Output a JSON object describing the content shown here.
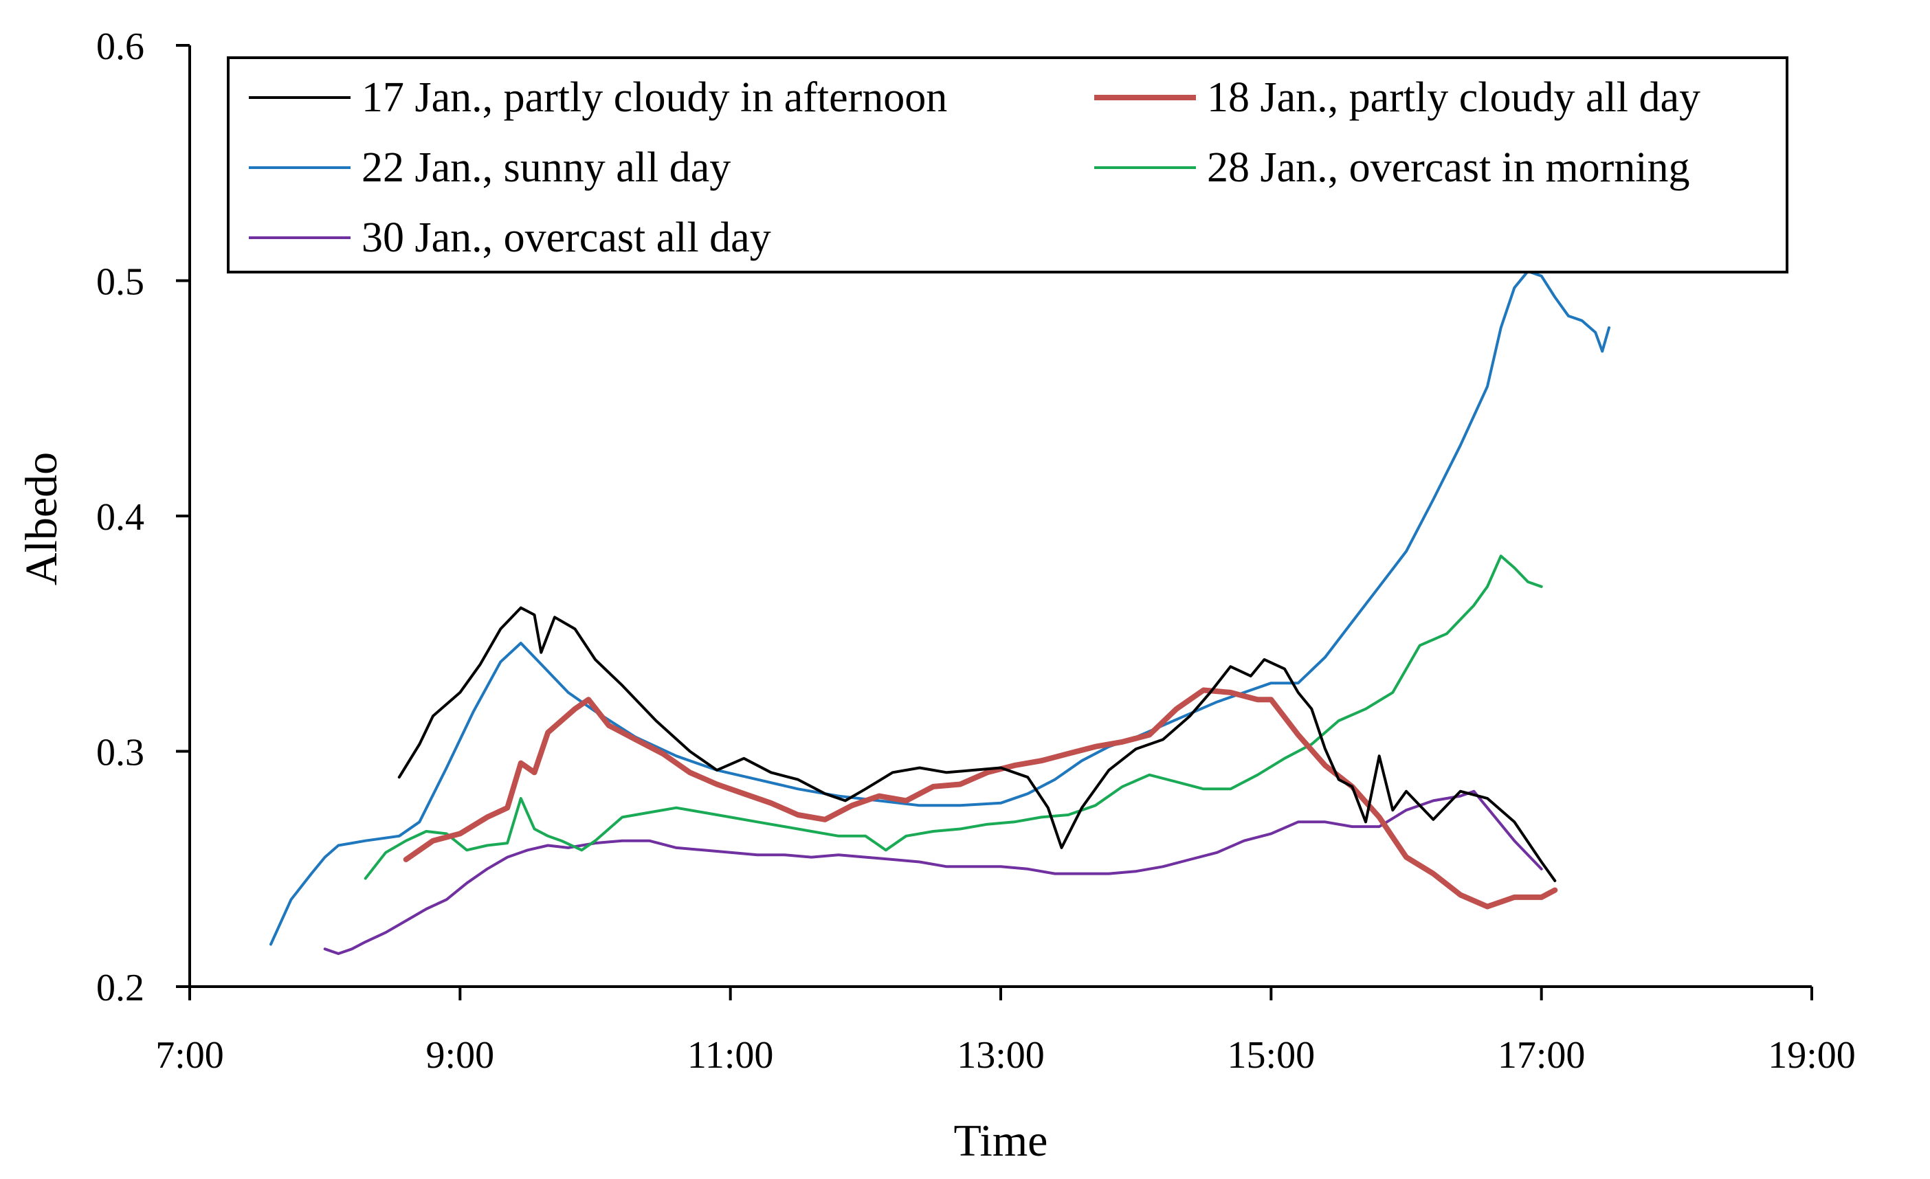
{
  "chart_data": {
    "type": "line",
    "title": "",
    "xlabel": "Time",
    "ylabel": "Albedo",
    "xlim": [
      7,
      19
    ],
    "ylim": [
      0.2,
      0.6
    ],
    "x_ticks": [
      7,
      9,
      11,
      13,
      15,
      17,
      19
    ],
    "x_tick_labels": [
      "7:00",
      "9:00",
      "11:00",
      "13:00",
      "15:00",
      "17:00",
      "19:00"
    ],
    "y_ticks": [
      0.2,
      0.3,
      0.4,
      0.5,
      0.6
    ],
    "y_tick_labels": [
      "0.2",
      "0.3",
      "0.4",
      "0.5",
      "0.6"
    ],
    "grid": false,
    "legend_position": "top",
    "series": [
      {
        "name": "17 Jan., partly cloudy in afternoon",
        "color": "#000000",
        "x": [
          8.55,
          8.7,
          8.8,
          9.0,
          9.15,
          9.3,
          9.45,
          9.55,
          9.6,
          9.7,
          9.85,
          10.0,
          10.2,
          10.45,
          10.7,
          10.9,
          11.1,
          11.3,
          11.5,
          11.7,
          11.85,
          12.0,
          12.2,
          12.4,
          12.6,
          12.8,
          13.0,
          13.2,
          13.35,
          13.45,
          13.6,
          13.8,
          14.0,
          14.2,
          14.4,
          14.55,
          14.7,
          14.85,
          14.95,
          15.1,
          15.2,
          15.3,
          15.4,
          15.5,
          15.6,
          15.7,
          15.8,
          15.9,
          16.0,
          16.2,
          16.4,
          16.6,
          16.8,
          17.0,
          17.1
        ],
        "y": [
          0.289,
          0.303,
          0.315,
          0.325,
          0.337,
          0.352,
          0.361,
          0.358,
          0.342,
          0.357,
          0.352,
          0.339,
          0.328,
          0.313,
          0.3,
          0.292,
          0.297,
          0.291,
          0.288,
          0.282,
          0.279,
          0.284,
          0.291,
          0.293,
          0.291,
          0.292,
          0.293,
          0.289,
          0.276,
          0.259,
          0.276,
          0.292,
          0.301,
          0.305,
          0.315,
          0.325,
          0.336,
          0.332,
          0.339,
          0.335,
          0.325,
          0.318,
          0.301,
          0.288,
          0.285,
          0.27,
          0.298,
          0.275,
          0.283,
          0.271,
          0.283,
          0.28,
          0.27,
          0.253,
          0.245
        ]
      },
      {
        "name": "18 Jan., partly cloudy all day",
        "color": "#c0504d",
        "x": [
          8.6,
          8.8,
          9.0,
          9.2,
          9.35,
          9.45,
          9.55,
          9.65,
          9.75,
          9.85,
          9.95,
          10.1,
          10.3,
          10.5,
          10.7,
          10.9,
          11.1,
          11.3,
          11.5,
          11.7,
          11.9,
          12.1,
          12.3,
          12.5,
          12.7,
          12.9,
          13.1,
          13.3,
          13.5,
          13.7,
          13.9,
          14.1,
          14.3,
          14.5,
          14.7,
          14.9,
          15.0,
          15.2,
          15.4,
          15.6,
          15.8,
          16.0,
          16.2,
          16.4,
          16.6,
          16.8,
          17.0,
          17.1
        ],
        "y": [
          0.254,
          0.262,
          0.265,
          0.272,
          0.276,
          0.295,
          0.291,
          0.308,
          0.313,
          0.318,
          0.322,
          0.311,
          0.305,
          0.299,
          0.291,
          0.286,
          0.282,
          0.278,
          0.273,
          0.271,
          0.277,
          0.281,
          0.279,
          0.285,
          0.286,
          0.291,
          0.294,
          0.296,
          0.299,
          0.302,
          0.304,
          0.307,
          0.318,
          0.326,
          0.325,
          0.322,
          0.322,
          0.307,
          0.294,
          0.285,
          0.272,
          0.255,
          0.248,
          0.239,
          0.234,
          0.238,
          0.238,
          0.241
        ]
      },
      {
        "name": "22 Jan., sunny  all day",
        "color": "#1f77bd",
        "x": [
          7.6,
          7.75,
          7.9,
          8.0,
          8.1,
          8.3,
          8.55,
          8.7,
          8.9,
          9.1,
          9.3,
          9.45,
          9.6,
          9.8,
          10.0,
          10.3,
          10.6,
          10.9,
          11.2,
          11.5,
          11.8,
          12.1,
          12.4,
          12.7,
          13.0,
          13.2,
          13.4,
          13.6,
          13.8,
          14.0,
          14.2,
          14.4,
          14.6,
          14.8,
          15.0,
          15.2,
          15.4,
          15.6,
          15.8,
          16.0,
          16.2,
          16.4,
          16.6,
          16.7,
          16.8,
          16.9,
          17.0,
          17.1,
          17.2,
          17.3,
          17.4,
          17.45,
          17.5
        ],
        "y": [
          0.218,
          0.237,
          0.248,
          0.255,
          0.26,
          0.262,
          0.264,
          0.27,
          0.293,
          0.317,
          0.338,
          0.346,
          0.337,
          0.325,
          0.317,
          0.306,
          0.298,
          0.292,
          0.288,
          0.284,
          0.281,
          0.279,
          0.277,
          0.277,
          0.278,
          0.282,
          0.288,
          0.296,
          0.302,
          0.306,
          0.311,
          0.316,
          0.321,
          0.325,
          0.329,
          0.329,
          0.34,
          0.355,
          0.37,
          0.385,
          0.407,
          0.43,
          0.455,
          0.48,
          0.497,
          0.504,
          0.502,
          0.493,
          0.485,
          0.483,
          0.478,
          0.47,
          0.48
        ]
      },
      {
        "name": "28 Jan., overcast in morning",
        "color": "#1aaa55",
        "x": [
          8.3,
          8.45,
          8.6,
          8.75,
          8.9,
          9.05,
          9.2,
          9.35,
          9.45,
          9.55,
          9.65,
          9.75,
          9.9,
          10.0,
          10.2,
          10.4,
          10.6,
          10.8,
          11.0,
          11.2,
          11.4,
          11.6,
          11.8,
          12.0,
          12.15,
          12.3,
          12.5,
          12.7,
          12.9,
          13.1,
          13.3,
          13.5,
          13.7,
          13.9,
          14.1,
          14.3,
          14.5,
          14.7,
          14.9,
          15.1,
          15.3,
          15.5,
          15.7,
          15.9,
          16.1,
          16.3,
          16.5,
          16.6,
          16.7,
          16.8,
          16.9,
          17.0
        ],
        "y": [
          0.246,
          0.257,
          0.262,
          0.266,
          0.265,
          0.258,
          0.26,
          0.261,
          0.28,
          0.267,
          0.264,
          0.262,
          0.258,
          0.262,
          0.272,
          0.274,
          0.276,
          0.274,
          0.272,
          0.27,
          0.268,
          0.266,
          0.264,
          0.264,
          0.258,
          0.264,
          0.266,
          0.267,
          0.269,
          0.27,
          0.272,
          0.273,
          0.277,
          0.285,
          0.29,
          0.287,
          0.284,
          0.284,
          0.29,
          0.297,
          0.303,
          0.313,
          0.318,
          0.325,
          0.345,
          0.35,
          0.362,
          0.37,
          0.383,
          0.378,
          0.372,
          0.37
        ]
      },
      {
        "name": "30 Jan., overcast all day",
        "color": "#7030a0",
        "x": [
          8.0,
          8.1,
          8.2,
          8.3,
          8.45,
          8.6,
          8.75,
          8.9,
          9.05,
          9.2,
          9.35,
          9.5,
          9.65,
          9.8,
          10.0,
          10.2,
          10.4,
          10.6,
          10.8,
          11.0,
          11.2,
          11.4,
          11.6,
          11.8,
          12.0,
          12.2,
          12.4,
          12.6,
          12.8,
          13.0,
          13.2,
          13.4,
          13.6,
          13.8,
          14.0,
          14.2,
          14.4,
          14.6,
          14.8,
          15.0,
          15.2,
          15.4,
          15.6,
          15.8,
          16.0,
          16.2,
          16.4,
          16.5,
          16.6,
          16.8,
          17.0
        ],
        "y": [
          0.216,
          0.214,
          0.216,
          0.219,
          0.223,
          0.228,
          0.233,
          0.237,
          0.244,
          0.25,
          0.255,
          0.258,
          0.26,
          0.259,
          0.261,
          0.262,
          0.262,
          0.259,
          0.258,
          0.257,
          0.256,
          0.256,
          0.255,
          0.256,
          0.255,
          0.254,
          0.253,
          0.251,
          0.251,
          0.251,
          0.25,
          0.248,
          0.248,
          0.248,
          0.249,
          0.251,
          0.254,
          0.257,
          0.262,
          0.265,
          0.27,
          0.27,
          0.268,
          0.268,
          0.275,
          0.279,
          0.281,
          0.283,
          0.276,
          0.262,
          0.25
        ]
      }
    ]
  }
}
